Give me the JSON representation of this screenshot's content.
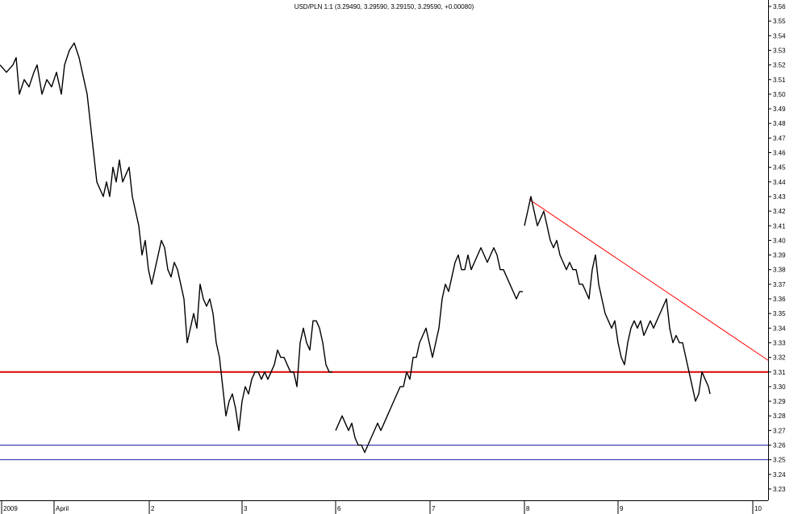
{
  "chart_data": {
    "type": "line",
    "title": "USD/PLN 1:1 (3.29490, 3.29590, 3.29150, 3.29590, +0.00080)",
    "xlabel": "",
    "ylabel": "",
    "x_tick_labels": [
      "2009",
      "April",
      "2",
      "3",
      "6",
      "7",
      "8",
      "9",
      "10"
    ],
    "y_ticks": [
      3.56,
      3.55,
      3.54,
      3.53,
      3.52,
      3.51,
      3.5,
      3.49,
      3.48,
      3.47,
      3.46,
      3.45,
      3.44,
      3.43,
      3.42,
      3.41,
      3.4,
      3.39,
      3.38,
      3.37,
      3.36,
      3.35,
      3.34,
      3.33,
      3.32,
      3.31,
      3.3,
      3.29,
      3.28,
      3.27,
      3.26,
      3.25,
      3.24,
      3.23
    ],
    "ylim": [
      3.225,
      3.565
    ],
    "grid": false,
    "series": [
      {
        "color": "#000000",
        "segments": [
          [
            [
              0,
              3.52
            ],
            [
              8,
              3.515
            ],
            [
              16,
              3.52
            ],
            [
              20,
              3.525
            ],
            [
              24,
              3.5
            ],
            [
              30,
              3.51
            ],
            [
              36,
              3.505
            ],
            [
              42,
              3.515
            ],
            [
              46,
              3.52
            ],
            [
              52,
              3.5
            ],
            [
              58,
              3.51
            ],
            [
              64,
              3.505
            ],
            [
              70,
              3.515
            ],
            [
              76,
              3.5
            ],
            [
              80,
              3.52
            ],
            [
              86,
              3.53
            ],
            [
              92,
              3.535
            ],
            [
              98,
              3.525
            ],
            [
              104,
              3.51
            ],
            [
              108,
              3.5
            ],
            [
              112,
              3.48
            ],
            [
              116,
              3.46
            ],
            [
              120,
              3.44
            ],
            [
              124,
              3.435
            ],
            [
              128,
              3.43
            ],
            [
              132,
              3.44
            ],
            [
              136,
              3.43
            ],
            [
              140,
              3.45
            ],
            [
              144,
              3.44
            ],
            [
              148,
              3.455
            ],
            [
              152,
              3.44
            ],
            [
              156,
              3.445
            ],
            [
              160,
              3.45
            ],
            [
              164,
              3.43
            ],
            [
              168,
              3.42
            ],
            [
              172,
              3.41
            ],
            [
              176,
              3.39
            ],
            [
              180,
              3.4
            ],
            [
              184,
              3.38
            ],
            [
              188,
              3.37
            ],
            [
              192,
              3.38
            ],
            [
              196,
              3.39
            ],
            [
              200,
              3.4
            ],
            [
              204,
              3.395
            ],
            [
              208,
              3.38
            ],
            [
              212,
              3.375
            ],
            [
              216,
              3.385
            ],
            [
              220,
              3.38
            ],
            [
              224,
              3.37
            ],
            [
              228,
              3.36
            ],
            [
              232,
              3.33
            ],
            [
              236,
              3.34
            ],
            [
              240,
              3.35
            ],
            [
              244,
              3.34
            ],
            [
              248,
              3.37
            ],
            [
              252,
              3.36
            ],
            [
              256,
              3.355
            ],
            [
              260,
              3.36
            ],
            [
              264,
              3.35
            ],
            [
              268,
              3.33
            ],
            [
              272,
              3.32
            ],
            [
              276,
              3.3
            ],
            [
              280,
              3.28
            ],
            [
              284,
              3.29
            ],
            [
              288,
              3.295
            ],
            [
              292,
              3.285
            ],
            [
              296,
              3.27
            ],
            [
              300,
              3.29
            ],
            [
              304,
              3.3
            ],
            [
              308,
              3.295
            ],
            [
              312,
              3.305
            ],
            [
              316,
              3.31
            ],
            [
              320,
              3.31
            ],
            [
              324,
              3.305
            ],
            [
              328,
              3.31
            ],
            [
              332,
              3.305
            ],
            [
              336,
              3.31
            ],
            [
              340,
              3.315
            ],
            [
              344,
              3.325
            ],
            [
              348,
              3.32
            ],
            [
              352,
              3.32
            ],
            [
              356,
              3.315
            ],
            [
              360,
              3.31
            ],
            [
              364,
              3.31
            ],
            [
              368,
              3.3
            ],
            [
              372,
              3.33
            ],
            [
              376,
              3.34
            ],
            [
              380,
              3.33
            ],
            [
              384,
              3.325
            ],
            [
              388,
              3.345
            ],
            [
              392,
              3.345
            ],
            [
              396,
              3.34
            ],
            [
              400,
              3.33
            ],
            [
              404,
              3.315
            ],
            [
              408,
              3.31
            ],
            [
              412,
              3.31
            ]
          ],
          [
            [
              416,
              3.27
            ],
            [
              420,
              3.275
            ],
            [
              424,
              3.28
            ],
            [
              428,
              3.275
            ],
            [
              432,
              3.27
            ],
            [
              436,
              3.275
            ],
            [
              440,
              3.265
            ],
            [
              444,
              3.26
            ],
            [
              448,
              3.26
            ],
            [
              452,
              3.255
            ],
            [
              456,
              3.26
            ],
            [
              460,
              3.265
            ],
            [
              464,
              3.27
            ],
            [
              468,
              3.275
            ],
            [
              472,
              3.27
            ],
            [
              476,
              3.275
            ],
            [
              480,
              3.28
            ],
            [
              484,
              3.285
            ],
            [
              488,
              3.29
            ],
            [
              492,
              3.295
            ],
            [
              496,
              3.3
            ],
            [
              500,
              3.3
            ],
            [
              504,
              3.31
            ],
            [
              508,
              3.305
            ],
            [
              512,
              3.32
            ],
            [
              516,
              3.32
            ],
            [
              520,
              3.33
            ],
            [
              524,
              3.335
            ],
            [
              528,
              3.34
            ],
            [
              532,
              3.33
            ],
            [
              536,
              3.32
            ],
            [
              540,
              3.33
            ],
            [
              544,
              3.34
            ],
            [
              548,
              3.36
            ],
            [
              552,
              3.37
            ],
            [
              556,
              3.365
            ],
            [
              560,
              3.375
            ],
            [
              564,
              3.385
            ],
            [
              568,
              3.39
            ],
            [
              572,
              3.38
            ],
            [
              576,
              3.38
            ],
            [
              580,
              3.39
            ],
            [
              584,
              3.38
            ],
            [
              588,
              3.385
            ],
            [
              592,
              3.39
            ],
            [
              596,
              3.395
            ],
            [
              600,
              3.39
            ],
            [
              604,
              3.385
            ],
            [
              608,
              3.39
            ],
            [
              612,
              3.395
            ],
            [
              616,
              3.39
            ],
            [
              620,
              3.38
            ],
            [
              624,
              3.38
            ],
            [
              628,
              3.375
            ],
            [
              632,
              3.37
            ],
            [
              636,
              3.365
            ],
            [
              640,
              3.36
            ],
            [
              644,
              3.365
            ],
            [
              648,
              3.365
            ]
          ],
          [
            [
              650,
              3.41
            ],
            [
              654,
              3.42
            ],
            [
              658,
              3.43
            ],
            [
              662,
              3.42
            ],
            [
              666,
              3.41
            ],
            [
              670,
              3.415
            ],
            [
              674,
              3.42
            ],
            [
              678,
              3.41
            ],
            [
              682,
              3.4
            ],
            [
              686,
              3.395
            ],
            [
              690,
              3.4
            ],
            [
              694,
              3.39
            ],
            [
              698,
              3.385
            ],
            [
              702,
              3.38
            ],
            [
              706,
              3.385
            ],
            [
              710,
              3.38
            ],
            [
              714,
              3.38
            ],
            [
              718,
              3.37
            ],
            [
              722,
              3.37
            ],
            [
              726,
              3.365
            ],
            [
              730,
              3.36
            ],
            [
              734,
              3.38
            ],
            [
              738,
              3.39
            ],
            [
              742,
              3.37
            ],
            [
              746,
              3.36
            ],
            [
              750,
              3.35
            ],
            [
              754,
              3.345
            ],
            [
              758,
              3.34
            ],
            [
              762,
              3.345
            ],
            [
              766,
              3.33
            ],
            [
              770,
              3.32
            ],
            [
              774,
              3.315
            ],
            [
              778,
              3.33
            ],
            [
              782,
              3.34
            ],
            [
              786,
              3.345
            ],
            [
              790,
              3.34
            ],
            [
              794,
              3.345
            ],
            [
              798,
              3.335
            ],
            [
              802,
              3.34
            ],
            [
              806,
              3.345
            ],
            [
              810,
              3.34
            ],
            [
              814,
              3.345
            ],
            [
              818,
              3.35
            ],
            [
              822,
              3.355
            ],
            [
              826,
              3.36
            ],
            [
              830,
              3.34
            ],
            [
              834,
              3.33
            ],
            [
              838,
              3.335
            ],
            [
              842,
              3.33
            ],
            [
              846,
              3.33
            ],
            [
              850,
              3.32
            ],
            [
              854,
              3.31
            ],
            [
              858,
              3.3
            ],
            [
              862,
              3.29
            ],
            [
              866,
              3.295
            ],
            [
              870,
              3.31
            ],
            [
              874,
              3.305
            ],
            [
              878,
              3.3
            ],
            [
              880,
              3.295
            ]
          ]
        ]
      }
    ],
    "reference_lines": [
      {
        "type": "horizontal",
        "value": 3.31,
        "color": "#dd0000"
      },
      {
        "type": "horizontal",
        "value": 3.26,
        "color": "#2222aa"
      },
      {
        "type": "horizontal",
        "value": 3.25,
        "color": "#2222aa"
      }
    ],
    "trendline": {
      "color": "#ff0000",
      "points": [
        [
          656,
          3.428
        ],
        [
          952,
          3.318
        ]
      ]
    }
  }
}
